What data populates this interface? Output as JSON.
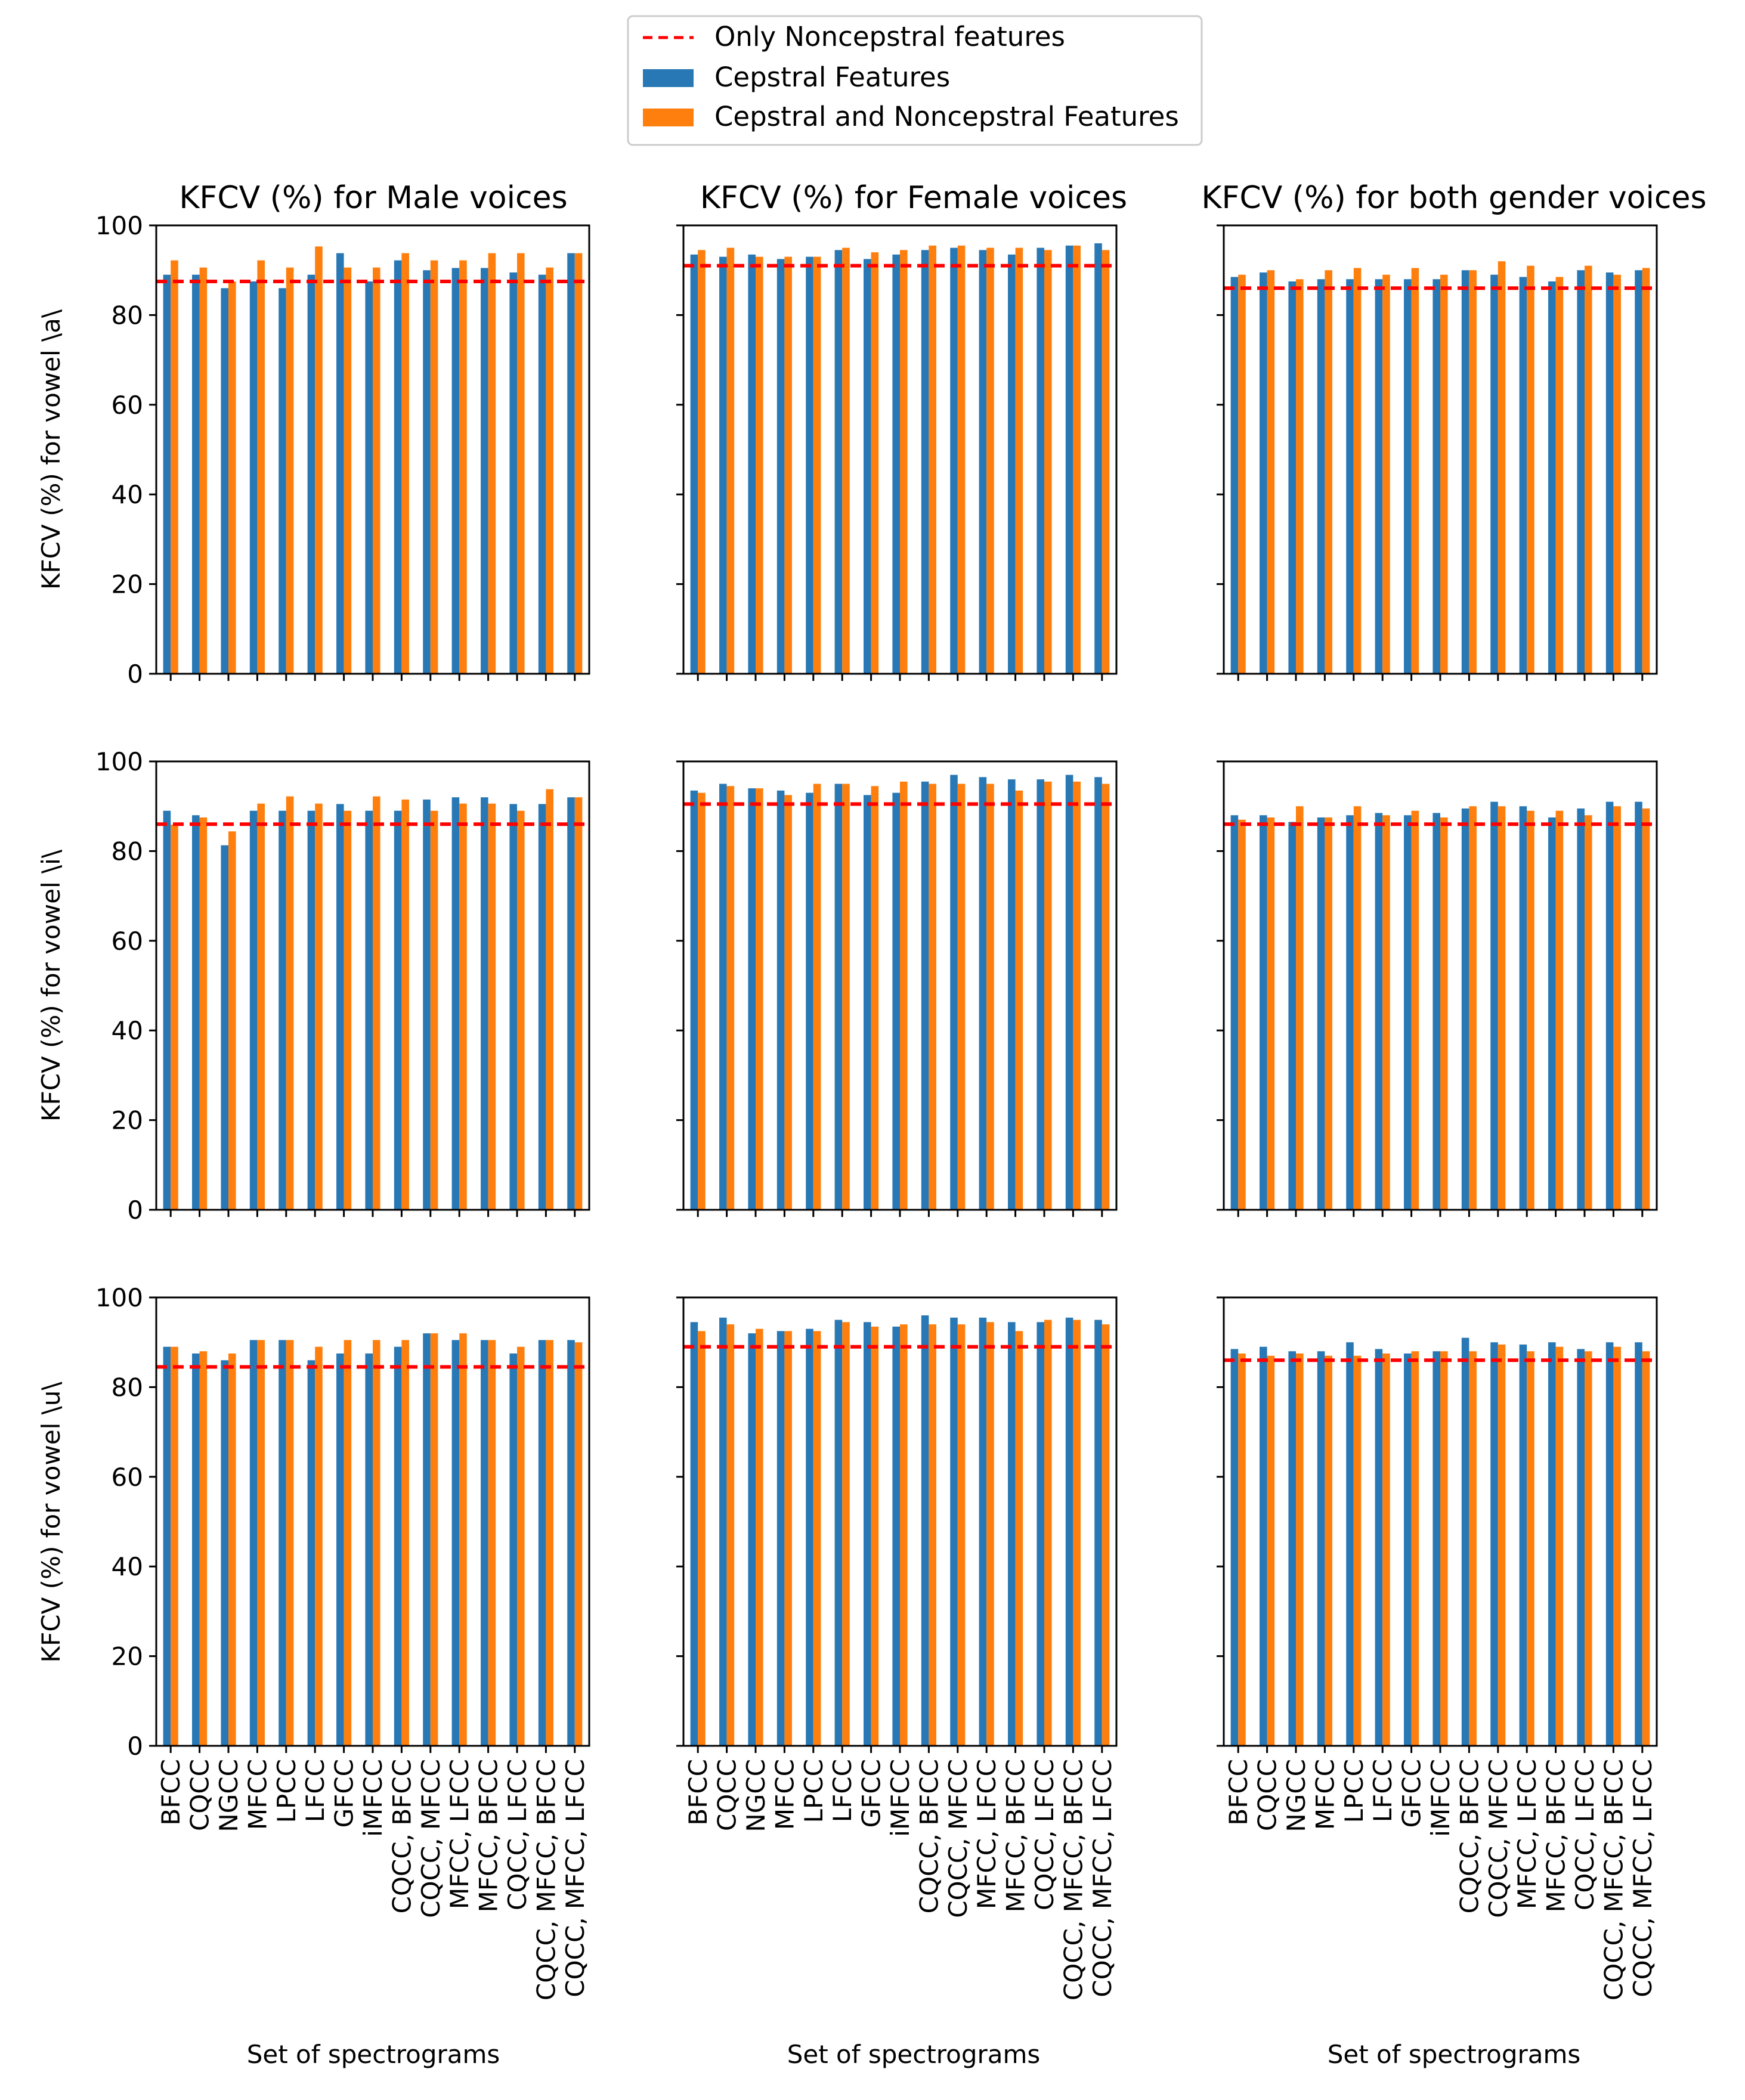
{
  "colors": {
    "cepstral": "#2878b5",
    "combined": "#ff7f0e",
    "baseline": "#ff0000",
    "axis": "#000000"
  },
  "legend": {
    "baseline_label": "Only Noncepstral features",
    "cepstral_label": "Cepstral Features",
    "combined_label": "Cepstral and Noncepstral Features"
  },
  "chart_data": {
    "type": "bar",
    "categories": [
      "BFCC",
      "CQCC",
      "NGCC",
      "MFCC",
      "LPCC",
      "LFCC",
      "GFCC",
      "iMFCC",
      "CQCC, BFCC",
      "CQCC, MFCC",
      "MFCC, LFCC",
      "MFCC, BFCC",
      "CQCC, LFCC",
      "CQCC, MFCC, BFCC",
      "CQCC, MFCC, LFCC"
    ],
    "ylim": [
      0,
      100
    ],
    "yticks": [
      0,
      20,
      40,
      60,
      80,
      100
    ],
    "xlabel": "Set of spectrograms",
    "row_ylabels": [
      "KFCV (%) for vowel \\a\\",
      "KFCV (%) for vowel \\i\\",
      "KFCV (%) for vowel \\u\\"
    ],
    "col_titles": [
      "KFCV (%) for Male voices",
      "KFCV (%) for Female voices",
      "KFCV (%) for both gender voices"
    ],
    "panels": [
      {
        "row": 0,
        "col": 0,
        "baseline": 87.5,
        "series": [
          {
            "name": "Cepstral Features",
            "values": [
              89.0,
              89.0,
              86.0,
              87.5,
              86.0,
              89.0,
              93.8,
              87.5,
              92.2,
              90.0,
              90.5,
              90.5,
              89.5,
              89.0,
              93.8
            ]
          },
          {
            "name": "Cepstral and Noncepstral Features",
            "values": [
              92.2,
              90.6,
              87.5,
              92.2,
              90.6,
              95.3,
              90.6,
              90.6,
              93.8,
              92.2,
              92.2,
              93.8,
              93.8,
              90.6,
              93.8
            ]
          }
        ]
      },
      {
        "row": 0,
        "col": 1,
        "baseline": 91.0,
        "series": [
          {
            "name": "Cepstral Features",
            "values": [
              93.5,
              93.0,
              93.5,
              92.5,
              93.0,
              94.5,
              92.5,
              93.5,
              94.5,
              95.0,
              94.5,
              93.5,
              95.0,
              95.5,
              96.0
            ]
          },
          {
            "name": "Cepstral and Noncepstral Features",
            "values": [
              94.5,
              95.0,
              93.0,
              93.0,
              93.0,
              95.0,
              94.0,
              94.5,
              95.5,
              95.5,
              95.0,
              95.0,
              94.5,
              95.5,
              94.5
            ]
          }
        ]
      },
      {
        "row": 0,
        "col": 2,
        "baseline": 86.0,
        "series": [
          {
            "name": "Cepstral Features",
            "values": [
              88.5,
              89.5,
              87.5,
              88.0,
              88.0,
              88.0,
              88.0,
              88.0,
              90.0,
              89.0,
              88.5,
              87.5,
              90.0,
              89.5,
              90.0
            ]
          },
          {
            "name": "Cepstral and Noncepstral Features",
            "values": [
              89.0,
              90.0,
              88.0,
              90.0,
              90.5,
              89.0,
              90.5,
              89.0,
              90.0,
              92.0,
              91.0,
              88.5,
              91.0,
              89.0,
              90.5
            ]
          }
        ]
      },
      {
        "row": 1,
        "col": 0,
        "baseline": 86.0,
        "series": [
          {
            "name": "Cepstral Features",
            "values": [
              89.0,
              88.0,
              81.3,
              89.0,
              89.0,
              89.0,
              90.5,
              89.0,
              89.0,
              91.5,
              92.0,
              92.0,
              90.5,
              90.5,
              92.0
            ]
          },
          {
            "name": "Cepstral and Noncepstral Features",
            "values": [
              85.9,
              87.5,
              84.4,
              90.6,
              92.2,
              90.6,
              89.0,
              92.2,
              91.5,
              89.0,
              90.6,
              90.6,
              89.0,
              93.8,
              92.0
            ]
          }
        ]
      },
      {
        "row": 1,
        "col": 1,
        "baseline": 90.5,
        "series": [
          {
            "name": "Cepstral Features",
            "values": [
              93.5,
              95.0,
              94.0,
              93.5,
              93.0,
              95.0,
              92.5,
              93.0,
              95.5,
              97.0,
              96.5,
              96.0,
              96.0,
              97.0,
              96.5
            ]
          },
          {
            "name": "Cepstral and Noncepstral Features",
            "values": [
              93.0,
              94.5,
              94.0,
              92.5,
              95.0,
              95.0,
              94.5,
              95.5,
              95.0,
              95.0,
              95.0,
              93.5,
              95.5,
              95.5,
              95.0
            ]
          }
        ]
      },
      {
        "row": 1,
        "col": 2,
        "baseline": 86.0,
        "series": [
          {
            "name": "Cepstral Features",
            "values": [
              88.0,
              88.0,
              86.5,
              87.5,
              88.0,
              88.5,
              88.0,
              88.5,
              89.5,
              91.0,
              90.0,
              87.5,
              89.5,
              91.0,
              91.0
            ]
          },
          {
            "name": "Cepstral and Noncepstral Features",
            "values": [
              87.0,
              87.5,
              90.0,
              87.5,
              90.0,
              88.0,
              89.0,
              87.5,
              90.0,
              90.0,
              89.0,
              89.0,
              88.0,
              90.0,
              89.5
            ]
          }
        ]
      },
      {
        "row": 2,
        "col": 0,
        "baseline": 84.5,
        "series": [
          {
            "name": "Cepstral Features",
            "values": [
              89.0,
              87.5,
              86.0,
              90.5,
              90.5,
              86.0,
              87.5,
              87.5,
              89.0,
              92.0,
              90.5,
              90.5,
              87.5,
              90.5,
              90.5
            ]
          },
          {
            "name": "Cepstral and Noncepstral Features",
            "values": [
              89.0,
              88.0,
              87.5,
              90.5,
              90.5,
              89.0,
              90.5,
              90.5,
              90.5,
              92.0,
              92.0,
              90.5,
              89.0,
              90.5,
              90.0
            ]
          }
        ]
      },
      {
        "row": 2,
        "col": 1,
        "baseline": 89.0,
        "series": [
          {
            "name": "Cepstral Features",
            "values": [
              94.5,
              95.5,
              92.0,
              92.5,
              93.0,
              95.0,
              94.5,
              93.5,
              96.0,
              95.5,
              95.5,
              94.5,
              94.5,
              95.5,
              95.0
            ]
          },
          {
            "name": "Cepstral and Noncepstral Features",
            "values": [
              92.5,
              94.0,
              93.0,
              92.5,
              92.5,
              94.5,
              93.5,
              94.0,
              94.0,
              94.0,
              94.5,
              92.5,
              95.0,
              95.0,
              94.0
            ]
          }
        ]
      },
      {
        "row": 2,
        "col": 2,
        "baseline": 86.0,
        "series": [
          {
            "name": "Cepstral Features",
            "values": [
              88.5,
              89.0,
              88.0,
              88.0,
              90.0,
              88.5,
              87.5,
              88.0,
              91.0,
              90.0,
              89.5,
              90.0,
              88.5,
              90.0,
              90.0
            ]
          },
          {
            "name": "Cepstral and Noncepstral Features",
            "values": [
              87.5,
              87.0,
              87.5,
              87.0,
              87.0,
              87.5,
              88.0,
              88.0,
              88.0,
              89.5,
              88.0,
              89.0,
              88.0,
              89.0,
              88.0
            ]
          }
        ]
      }
    ]
  }
}
